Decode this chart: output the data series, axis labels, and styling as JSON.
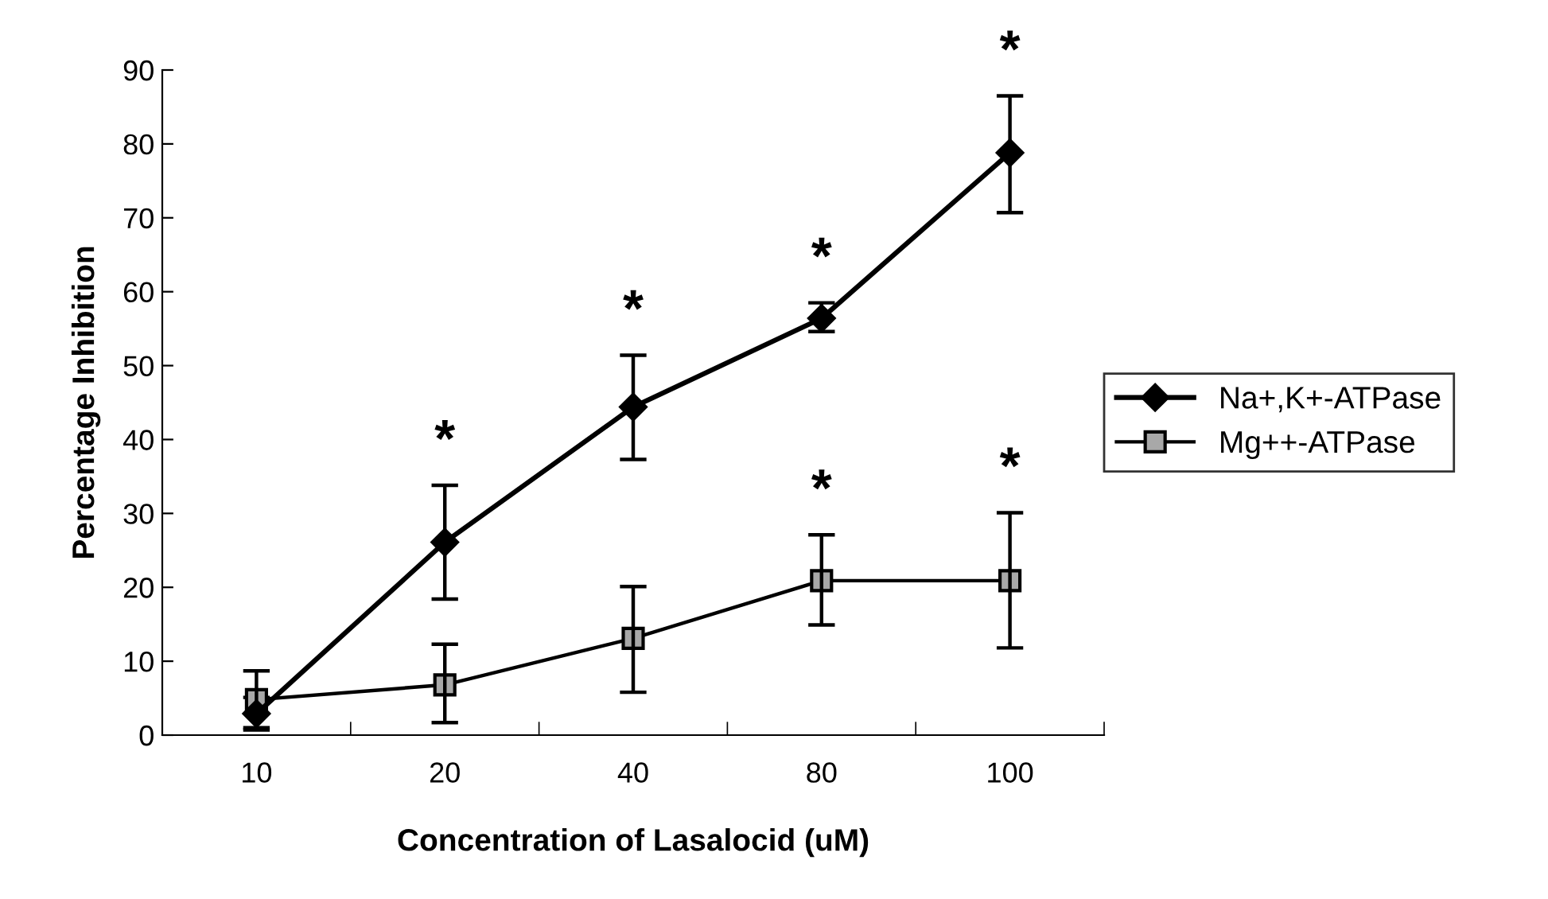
{
  "chart_data": {
    "type": "line",
    "xlabel": "Concentration of Lasalocid (uM)",
    "ylabel": "Percentage Inhibition",
    "categories": [
      "10",
      "20",
      "40",
      "80",
      "100"
    ],
    "series": [
      {
        "name": "Na+,K+-ATPase",
        "color": "#000000",
        "marker": "diamond",
        "values": [
          2.9,
          26.1,
          44.4,
          56.4,
          78.8
        ],
        "errors": [
          [
            0.7,
            5.1
          ],
          [
            18.4,
            33.8
          ],
          [
            37.3,
            51.4
          ],
          [
            54.6,
            58.5
          ],
          [
            70.7,
            86.5
          ]
        ]
      },
      {
        "name": "Mg++-ATPase",
        "color": "#000000",
        "marker": "square",
        "values": [
          4.8,
          6.8,
          13.1,
          20.9,
          20.9
        ],
        "errors": [
          [
            1.0,
            8.7
          ],
          [
            1.7,
            12.3
          ],
          [
            5.8,
            20.1
          ],
          [
            14.9,
            27.1
          ],
          [
            11.8,
            30.1
          ]
        ]
      }
    ],
    "ylim": [
      0,
      90
    ],
    "yticks": [
      0,
      10,
      20,
      30,
      40,
      50,
      60,
      70,
      80,
      90
    ],
    "grid": false,
    "legend": "right",
    "line_style": "solid",
    "annotations": [
      {
        "text": "*",
        "x": "20",
        "y": 33.8
      },
      {
        "text": "*",
        "x": "40",
        "y": 51.4
      },
      {
        "text": "*",
        "x": "80",
        "y": 58.5
      },
      {
        "text": "*",
        "x": "80",
        "y": 27.1
      },
      {
        "text": "*",
        "x": "100",
        "y": 86.5
      },
      {
        "text": "*",
        "x": "100",
        "y": 30.1
      }
    ]
  }
}
